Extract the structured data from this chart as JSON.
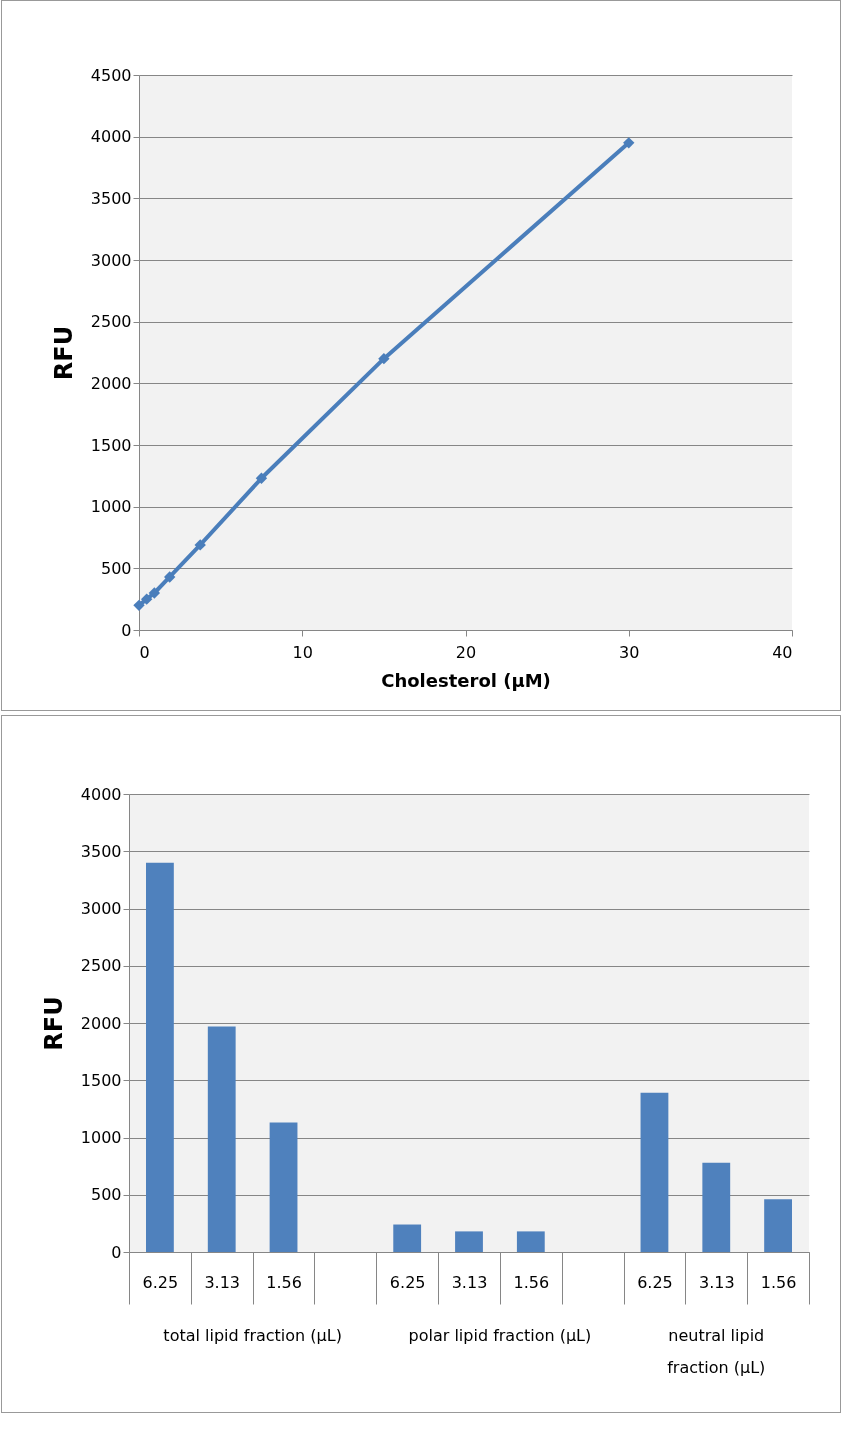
{
  "chart_data": [
    {
      "type": "line",
      "xlabel": "Cholesterol (µM)",
      "ylabel": "RFU",
      "x": [
        0,
        0.47,
        0.94,
        1.88,
        3.75,
        7.5,
        15,
        30
      ],
      "values": [
        200,
        250,
        300,
        430,
        690,
        1230,
        2200,
        3950
      ],
      "color": "#4a7ebb",
      "marker": "diamond",
      "xlim": [
        0,
        40
      ],
      "xticks": [
        0,
        10,
        20,
        30,
        40
      ],
      "ylim": [
        0,
        4500
      ],
      "yticks": [
        0,
        500,
        1000,
        1500,
        2000,
        2500,
        3000,
        3500,
        4000,
        4500
      ],
      "grid": "y"
    },
    {
      "type": "bar",
      "ylabel": "RFU",
      "categories": [
        "6.25",
        "3.13",
        "1.56",
        null,
        "6.25",
        "3.13",
        "1.56",
        null,
        "6.25",
        "3.13",
        "1.56"
      ],
      "values": [
        3400,
        1970,
        1130,
        null,
        240,
        180,
        180,
        null,
        1390,
        780,
        460
      ],
      "color": "#4f81bd",
      "annotations": [
        "total lipid  fraction (µL)",
        "polar lipid fraction (µL)",
        "neutral lipid fraction (µL)"
      ],
      "ylim": [
        0,
        4000
      ],
      "yticks": [
        0,
        500,
        1000,
        1500,
        2000,
        2500,
        3000,
        3500,
        4000
      ],
      "grid": "y"
    }
  ]
}
